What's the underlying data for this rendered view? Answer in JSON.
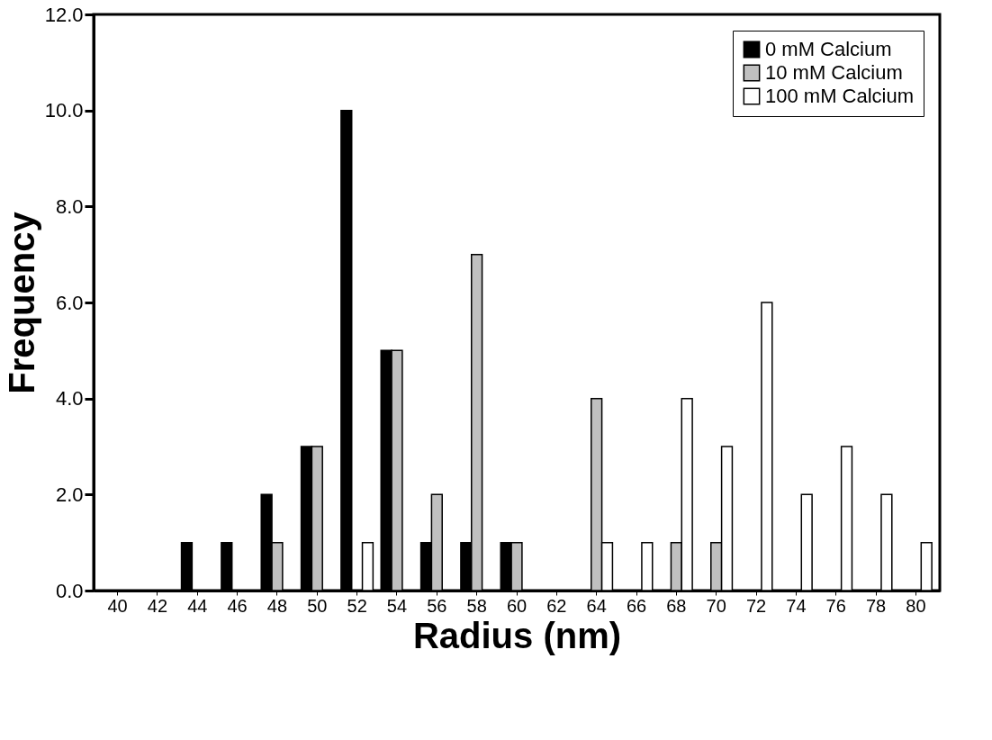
{
  "chart_data": {
    "type": "bar",
    "xlabel": "Radius (nm)",
    "ylabel": "Frequency",
    "categories": [
      "40",
      "42",
      "44",
      "46",
      "48",
      "50",
      "52",
      "54",
      "56",
      "58",
      "60",
      "62",
      "64",
      "66",
      "68",
      "70",
      "72",
      "74",
      "76",
      "78",
      "80"
    ],
    "series": [
      {
        "name": "0 mM Calcium",
        "color": "#000000",
        "values": [
          0,
          0,
          1,
          1,
          2,
          3,
          10,
          5,
          1,
          1,
          1,
          0,
          0,
          0,
          0,
          0,
          0,
          0,
          0,
          0,
          0
        ]
      },
      {
        "name": "10 mM Calcium",
        "color": "#c0c0c0",
        "values": [
          0,
          0,
          0,
          0,
          1,
          3,
          0,
          5,
          2,
          7,
          1,
          0,
          4,
          0,
          1,
          1,
          0,
          0,
          0,
          0,
          0
        ]
      },
      {
        "name": "100 mM Calcium",
        "color": "#ffffff",
        "values": [
          0,
          0,
          0,
          0,
          0,
          0,
          1,
          0,
          0,
          0,
          0,
          0,
          1,
          1,
          4,
          3,
          6,
          2,
          3,
          2,
          1
        ]
      }
    ],
    "ylim": [
      0,
      12
    ],
    "yticks": [
      {
        "value": 0,
        "label": "0.0"
      },
      {
        "value": 2,
        "label": "2.0"
      },
      {
        "value": 4,
        "label": "4.0"
      },
      {
        "value": 6,
        "label": "6.0"
      },
      {
        "value": 8,
        "label": "8.0"
      },
      {
        "value": 10,
        "label": "10.0"
      },
      {
        "value": 12,
        "label": "12.0"
      }
    ],
    "grid": false,
    "legend": "top right"
  }
}
